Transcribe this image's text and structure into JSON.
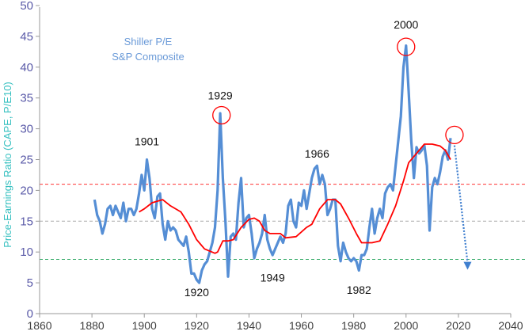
{
  "chart_data": {
    "type": "line",
    "title": "",
    "legend": [
      "Shiller P/E",
      "S&P Composite"
    ],
    "xlabel": "",
    "ylabel": "Price-Earnings Ratio (CAPE, P/E10)",
    "xlim": [
      1860,
      2040
    ],
    "ylim": [
      0,
      50
    ],
    "xticks": [
      1860,
      1880,
      1900,
      1920,
      1940,
      1960,
      1980,
      2000,
      2020,
      2040
    ],
    "yticks": [
      0,
      5,
      10,
      15,
      20,
      25,
      30,
      35,
      40,
      45,
      50
    ],
    "colors": {
      "cape": "#558ed5",
      "trend": "#ff0000",
      "upper": "#ff3333",
      "mean": "#aaaaaa",
      "lower": "#33aa66",
      "arrow": "#3f7fcf",
      "ytick": "#5a5aa8",
      "ylabel": "#36c0c0"
    },
    "series": [
      {
        "name": "Shiller P/E",
        "x": [
          1881,
          1882,
          1883,
          1884,
          1885,
          1886,
          1887,
          1888,
          1889,
          1890,
          1891,
          1892,
          1893,
          1894,
          1895,
          1896,
          1897,
          1898,
          1899,
          1900,
          1901,
          1902,
          1903,
          1904,
          1905,
          1906,
          1907,
          1908,
          1909,
          1910,
          1911,
          1912,
          1913,
          1914,
          1915,
          1916,
          1917,
          1918,
          1919,
          1920,
          1921,
          1922,
          1923,
          1924,
          1925,
          1926,
          1927,
          1928,
          1929,
          1930,
          1931,
          1932,
          1933,
          1934,
          1935,
          1936,
          1937,
          1938,
          1939,
          1940,
          1941,
          1942,
          1943,
          1944,
          1945,
          1946,
          1947,
          1948,
          1949,
          1950,
          1951,
          1952,
          1953,
          1954,
          1955,
          1956,
          1957,
          1958,
          1959,
          1960,
          1961,
          1962,
          1963,
          1964,
          1965,
          1966,
          1967,
          1968,
          1969,
          1970,
          1971,
          1972,
          1973,
          1974,
          1975,
          1976,
          1977,
          1978,
          1979,
          1980,
          1981,
          1982,
          1983,
          1984,
          1985,
          1986,
          1987,
          1988,
          1989,
          1990,
          1991,
          1992,
          1993,
          1994,
          1995,
          1996,
          1997,
          1998,
          1999,
          2000,
          2001,
          2002,
          2003,
          2004,
          2005,
          2006,
          2007,
          2008,
          2009,
          2010,
          2011,
          2012,
          2013,
          2014,
          2015,
          2016,
          2017
        ],
        "values": [
          18.5,
          16,
          15,
          13,
          14.5,
          17,
          17.5,
          16,
          17.5,
          16.5,
          15.5,
          18,
          15,
          17,
          17,
          16,
          17,
          19.5,
          22.5,
          20,
          25,
          22,
          17,
          15.5,
          19,
          19.5,
          14.5,
          12,
          15,
          13.5,
          14,
          13.5,
          12,
          11.5,
          11,
          12.5,
          10,
          6.5,
          6.5,
          5.5,
          5,
          7,
          8,
          8.5,
          10,
          11.5,
          14,
          20,
          32.5,
          22,
          15,
          6,
          12.5,
          13,
          12,
          18,
          22,
          14,
          15.5,
          16,
          13,
          9,
          10.5,
          11.5,
          13,
          16,
          12,
          10.5,
          9.5,
          10.5,
          11.5,
          12.5,
          11.5,
          13,
          17.5,
          18.5,
          15,
          14,
          18,
          17.5,
          20,
          17,
          19.5,
          22,
          23.5,
          24,
          21,
          22.5,
          21,
          16,
          17,
          18.5,
          18.5,
          11,
          8.5,
          11.5,
          10,
          9,
          8.5,
          9,
          8.5,
          7,
          9.5,
          9.5,
          10.5,
          14,
          17,
          13,
          15.5,
          17,
          15.5,
          19.5,
          20.5,
          21,
          20,
          24,
          28,
          32,
          40,
          43.5,
          36,
          28,
          22,
          27,
          26,
          26.5,
          27.3,
          24,
          13.5,
          20.5,
          22,
          21,
          23,
          25.5,
          26.5,
          25,
          28.5
        ]
      },
      {
        "name": "Trend",
        "x": [
          1898,
          1900,
          1903,
          1907,
          1910,
          1914,
          1917,
          1920,
          1923,
          1927,
          1928,
          1930,
          1932,
          1934,
          1937,
          1940,
          1942,
          1944,
          1946,
          1948,
          1952,
          1954,
          1958,
          1962,
          1964,
          1967,
          1970,
          1973,
          1975,
          1978,
          1981,
          1983,
          1987,
          1990,
          1993,
          1996,
          1999,
          2001,
          2004,
          2007,
          2010,
          2013,
          2015,
          2017
        ],
        "values": [
          16.5,
          17,
          18,
          18.5,
          17.5,
          16.5,
          14.5,
          12,
          10.5,
          9.8,
          10,
          11.8,
          11.8,
          12,
          14,
          15.3,
          15.5,
          15,
          13.5,
          13,
          13,
          12.3,
          12.5,
          14,
          14.5,
          17,
          18.5,
          18.5,
          17.8,
          15.5,
          13,
          11.5,
          11.5,
          11.8,
          14.5,
          17.5,
          21.5,
          24.5,
          26,
          27.5,
          27.5,
          27.2,
          26.5,
          25
        ]
      }
    ],
    "reference_lines": [
      {
        "name": "upper",
        "y": 21
      },
      {
        "name": "mean",
        "y": 15
      },
      {
        "name": "lower",
        "y": 8.8
      }
    ],
    "annotations": [
      {
        "text": "1901",
        "x": 1901,
        "y": 27.3
      },
      {
        "text": "1929",
        "x": 1929,
        "y": 34.8
      },
      {
        "text": "1920",
        "x": 1920,
        "y": 2.8
      },
      {
        "text": "1949",
        "x": 1949,
        "y": 5.2
      },
      {
        "text": "1966",
        "x": 1966,
        "y": 25.3
      },
      {
        "text": "1982",
        "x": 1982,
        "y": 3.2
      },
      {
        "text": "2000",
        "x": 2000,
        "y": 46.3
      }
    ],
    "circles": [
      {
        "x": 1929.5,
        "y": 32.2
      },
      {
        "x": 2000,
        "y": 43.3
      },
      {
        "x": 2018.5,
        "y": 29
      }
    ],
    "arrow": {
      "from": [
        2018.5,
        27.3
      ],
      "to": [
        2023.5,
        7.5
      ]
    }
  }
}
